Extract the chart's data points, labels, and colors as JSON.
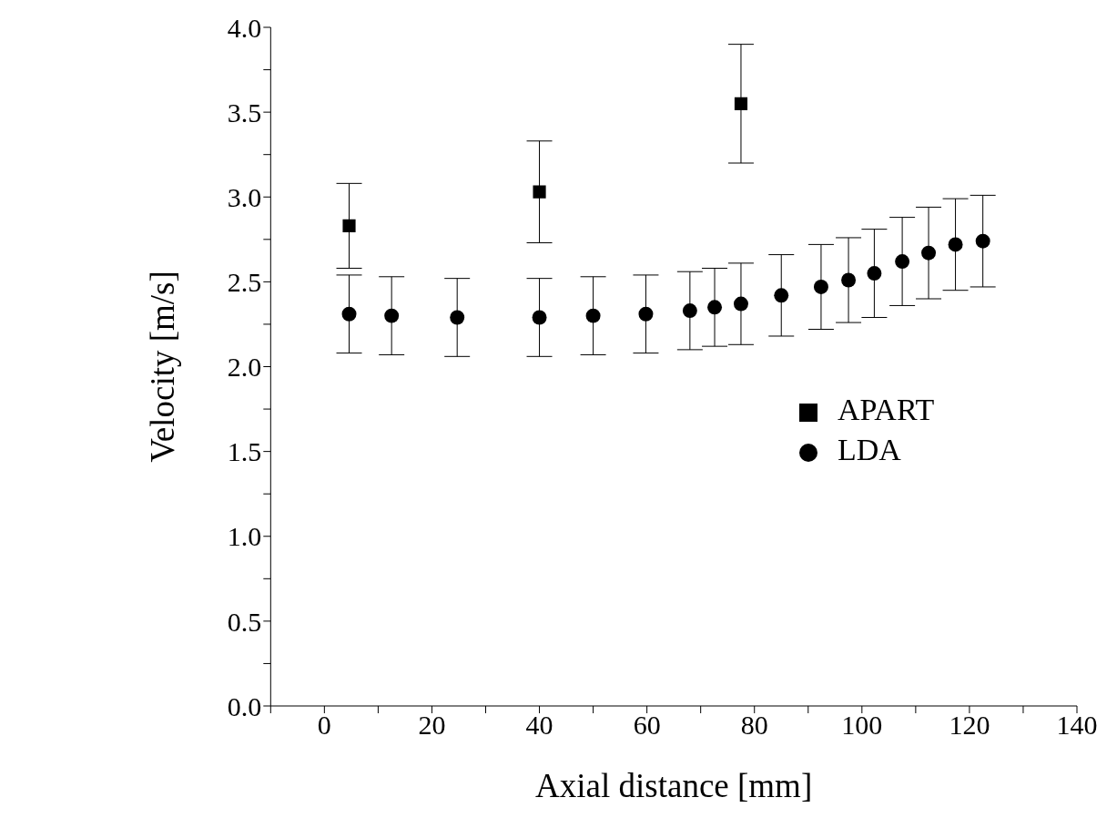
{
  "chart_data": {
    "type": "scatter",
    "xlabel": "Axial distance [mm]",
    "ylabel": "Velocity [m/s]",
    "xlim": [
      -10,
      140
    ],
    "xticks": [
      {
        "value": -10,
        "label": null
      },
      0,
      {
        "value": 10,
        "label": null
      },
      20,
      {
        "value": 30,
        "label": null
      },
      40,
      {
        "value": 50,
        "label": null
      },
      60,
      {
        "value": 70,
        "label": null
      },
      80,
      {
        "value": 90,
        "label": null
      },
      100,
      {
        "value": 110,
        "label": null
      },
      120,
      {
        "value": 130,
        "label": null
      },
      140
    ],
    "ylim": [
      0,
      4
    ],
    "yticks": [
      {
        "value": 0,
        "label": "0.0"
      },
      {
        "value": 0.25,
        "label": null
      },
      {
        "value": 0.5,
        "label": "0.5"
      },
      {
        "value": 0.75,
        "label": null
      },
      {
        "value": 1,
        "label": "1.0"
      },
      {
        "value": 1.25,
        "label": null
      },
      {
        "value": 1.5,
        "label": "1.5"
      },
      {
        "value": 1.75,
        "label": null
      },
      {
        "value": 2,
        "label": "2.0"
      },
      {
        "value": 2.25,
        "label": null
      },
      {
        "value": 2.5,
        "label": "2.5"
      },
      {
        "value": 2.75,
        "label": null
      },
      {
        "value": 3,
        "label": "3.0"
      },
      {
        "value": 3.25,
        "label": null
      },
      {
        "value": 3.5,
        "label": "3.5"
      },
      {
        "value": 3.75,
        "label": null
      },
      {
        "value": 4,
        "label": "4.0"
      }
    ],
    "grid": false,
    "legend": "right",
    "series": [
      {
        "name": "APART",
        "color": "#000000",
        "marker": "square",
        "x": [
          4.6,
          40,
          77.5
        ],
        "values": [
          2.83,
          3.03,
          3.55
        ],
        "errors": [
          0.25,
          0.3,
          0.35
        ]
      },
      {
        "name": "LDA",
        "color": "#000000",
        "marker": "circle",
        "x": [
          4.6,
          12.5,
          24.7,
          40,
          50,
          59.8,
          68,
          72.6,
          77.5,
          85,
          92.4,
          97.5,
          102.3,
          107.5,
          112.4,
          117.4,
          122.5
        ],
        "values": [
          2.31,
          2.3,
          2.29,
          2.29,
          2.3,
          2.31,
          2.33,
          2.35,
          2.37,
          2.42,
          2.47,
          2.51,
          2.55,
          2.62,
          2.67,
          2.72,
          2.74
        ],
        "errors": [
          0.23,
          0.23,
          0.23,
          0.23,
          0.23,
          0.23,
          0.23,
          0.23,
          0.24,
          0.24,
          0.25,
          0.25,
          0.26,
          0.26,
          0.27,
          0.27,
          0.27
        ]
      }
    ]
  }
}
